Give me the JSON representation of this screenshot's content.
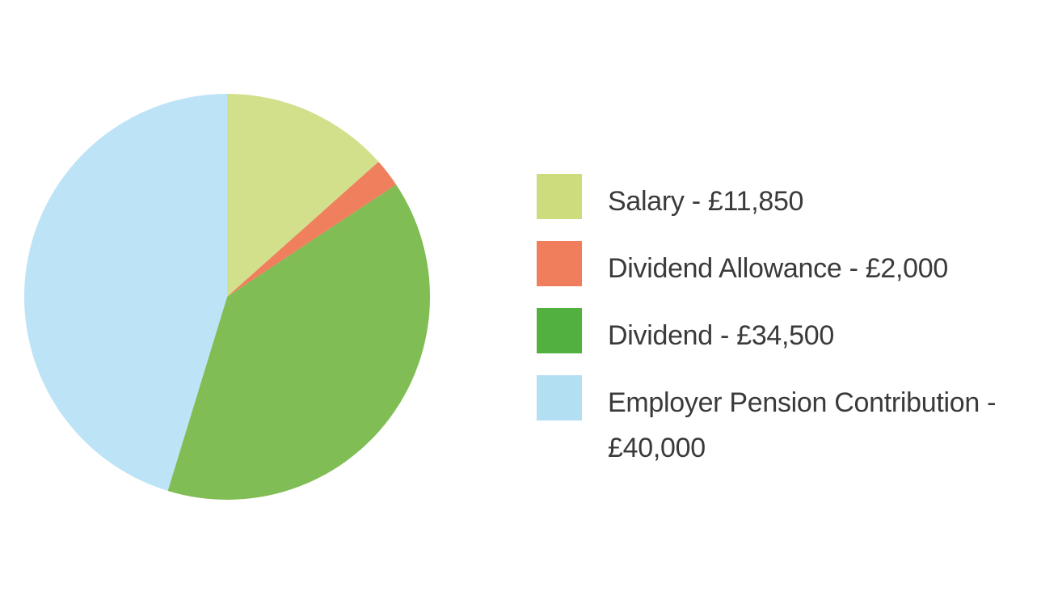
{
  "chart_data": {
    "type": "pie",
    "title": "",
    "slices": [
      {
        "label": "Salary - £11,850",
        "value": 11850,
        "color": "#d2e08c"
      },
      {
        "label": "Dividend Allowance - £2,000",
        "value": 2000,
        "color": "#ef7f5d"
      },
      {
        "label": "Dividend - £34,500",
        "value": 34500,
        "color": "#80bd54"
      },
      {
        "label": "Employer Pension Contribution - £40,000",
        "value": 40000,
        "color": "#bde3f7"
      }
    ],
    "legend_swatch_colors": [
      "#cddd7e",
      "#f07e5c",
      "#52b03f",
      "#b3dff2"
    ],
    "legend_position": "right",
    "start_angle": "top",
    "direction": "clockwise"
  }
}
